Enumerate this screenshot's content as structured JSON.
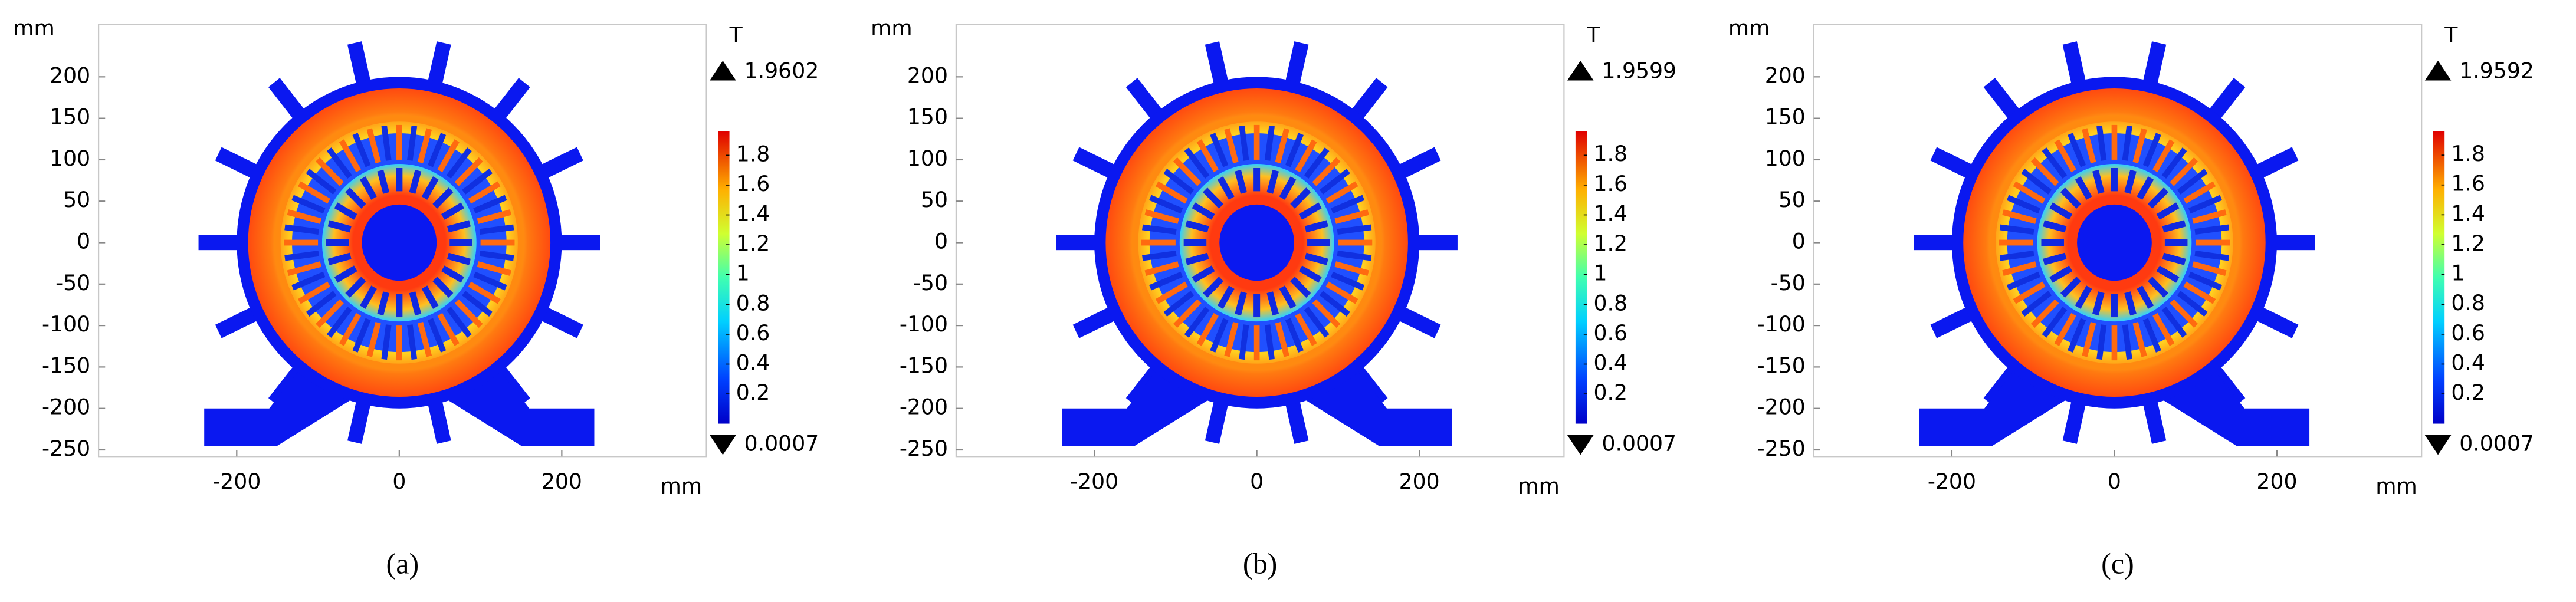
{
  "chart_data": [
    {
      "type": "field-map",
      "x_label": "mm",
      "y_label": "mm",
      "xlim": [
        -370,
        378
      ],
      "ylim": [
        -258,
        263
      ],
      "xticks": [
        -200,
        0,
        200
      ],
      "yticks": [
        -250,
        -200,
        -150,
        -100,
        -50,
        0,
        50,
        100,
        150,
        200
      ],
      "colorbar": {
        "label": "T",
        "max": 1.9602,
        "min": 0.0007,
        "ticks": [
          0.2,
          0.4,
          0.6,
          0.8,
          1,
          1.2,
          1.4,
          1.6,
          1.8
        ]
      },
      "caption": "(a)"
    },
    {
      "type": "field-map",
      "x_label": "mm",
      "y_label": "mm",
      "xlim": [
        -370,
        378
      ],
      "ylim": [
        -258,
        263
      ],
      "xticks": [
        -200,
        0,
        200
      ],
      "yticks": [
        -250,
        -200,
        -150,
        -100,
        -50,
        0,
        50,
        100,
        150,
        200
      ],
      "colorbar": {
        "label": "T",
        "max": 1.9599,
        "min": 0.0007,
        "ticks": [
          0.2,
          0.4,
          0.6,
          0.8,
          1,
          1.2,
          1.4,
          1.6,
          1.8
        ]
      },
      "caption": "(b)"
    },
    {
      "type": "field-map",
      "x_label": "mm",
      "y_label": "mm",
      "xlim": [
        -370,
        378
      ],
      "ylim": [
        -258,
        263
      ],
      "xticks": [
        -200,
        0,
        200
      ],
      "yticks": [
        -250,
        -200,
        -150,
        -100,
        -50,
        0,
        50,
        100,
        150,
        200
      ],
      "colorbar": {
        "label": "T",
        "max": 1.9592,
        "min": 0.0007,
        "ticks": [
          0.2,
          0.4,
          0.6,
          0.8,
          1,
          1.2,
          1.4,
          1.6,
          1.8
        ]
      },
      "caption": "(c)"
    }
  ]
}
